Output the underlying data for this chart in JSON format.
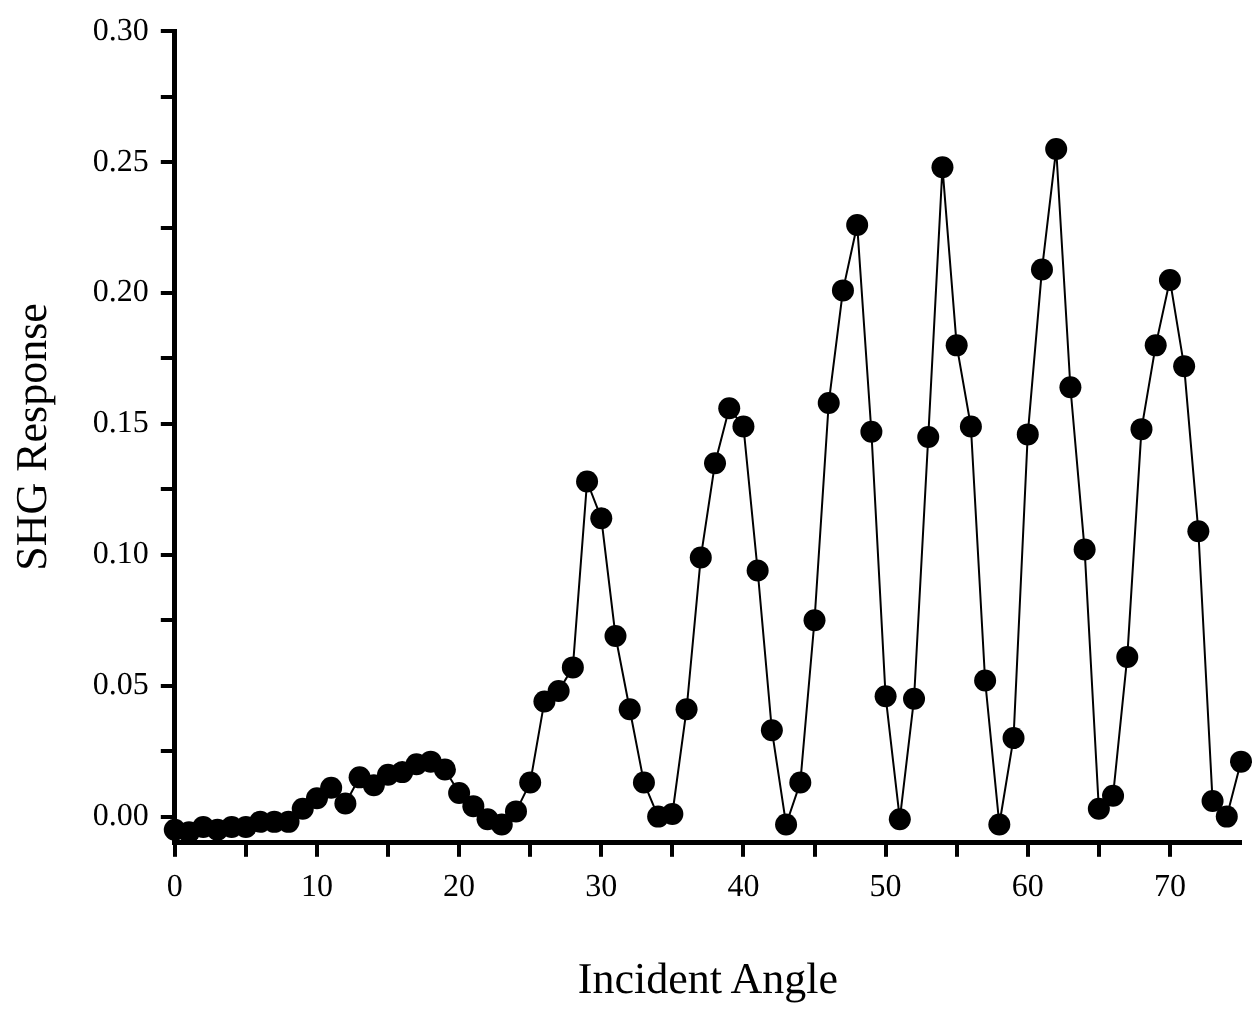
{
  "chart_data": {
    "type": "line",
    "xlabel": "Incident Angle",
    "ylabel": "SHG Response",
    "x": [
      0,
      1,
      2,
      3,
      4,
      5,
      6,
      7,
      8,
      9,
      10,
      11,
      12,
      13,
      14,
      15,
      16,
      17,
      18,
      19,
      20,
      21,
      22,
      23,
      24,
      25,
      26,
      27,
      28,
      29,
      30,
      31,
      32,
      33,
      34,
      35,
      36,
      37,
      38,
      39,
      40,
      41,
      42,
      43,
      44,
      45,
      46,
      47,
      48,
      49,
      50,
      51,
      52,
      53,
      54,
      55,
      56,
      57,
      58,
      59,
      60,
      61,
      62,
      63,
      64,
      65,
      66,
      67,
      68,
      69,
      70,
      71,
      72,
      73,
      74,
      75
    ],
    "series": [
      {
        "color": "#000000",
        "values": [
          -0.005,
          -0.006,
          -0.004,
          -0.005,
          -0.004,
          -0.004,
          -0.002,
          -0.002,
          -0.002,
          0.003,
          0.007,
          0.011,
          0.005,
          0.015,
          0.012,
          0.016,
          0.017,
          0.02,
          0.021,
          0.018,
          0.009,
          0.004,
          -0.001,
          -0.003,
          0.002,
          0.013,
          0.044,
          0.048,
          0.057,
          0.128,
          0.114,
          0.069,
          0.041,
          0.013,
          0.0,
          0.001,
          0.041,
          0.099,
          0.135,
          0.156,
          0.149,
          0.094,
          0.033,
          -0.003,
          0.013,
          0.075,
          0.158,
          0.201,
          0.226,
          0.147,
          0.046,
          -0.001,
          0.045,
          0.145,
          0.248,
          0.18,
          0.149,
          0.052,
          -0.003,
          0.03,
          0.146,
          0.209,
          0.255,
          0.164,
          0.102,
          0.003,
          0.008,
          0.061,
          0.148,
          0.18,
          0.205,
          0.172,
          0.109,
          0.006,
          0.0,
          0.021
        ]
      }
    ],
    "xlim": [
      0,
      75
    ],
    "ylim": [
      -0.01,
      0.3
    ],
    "xticks": [
      0,
      {
        "value": 5,
        "label": null
      },
      10,
      {
        "value": 15,
        "label": null
      },
      20,
      {
        "value": 25,
        "label": null
      },
      30,
      {
        "value": 35,
        "label": null
      },
      40,
      {
        "value": 45,
        "label": null
      },
      50,
      {
        "value": 55,
        "label": null
      },
      60,
      {
        "value": 65,
        "label": null
      },
      70
    ],
    "yticks": [
      {
        "value": 0,
        "label": "0.00"
      },
      {
        "value": 0.025,
        "label": null
      },
      {
        "value": 0.05,
        "label": "0.05"
      },
      {
        "value": 0.075,
        "label": null
      },
      {
        "value": 0.1,
        "label": "0.10"
      },
      {
        "value": 0.125,
        "label": null
      },
      {
        "value": 0.15,
        "label": "0.15"
      },
      {
        "value": 0.175,
        "label": null
      },
      {
        "value": 0.2,
        "label": "0.20"
      },
      {
        "value": 0.225,
        "label": null
      },
      {
        "value": 0.25,
        "label": "0.25"
      },
      {
        "value": 0.275,
        "label": null
      },
      {
        "value": 0.3,
        "label": "0.30"
      }
    ],
    "grid": false,
    "legend": false,
    "marker": "circle",
    "line_style": "solid"
  }
}
